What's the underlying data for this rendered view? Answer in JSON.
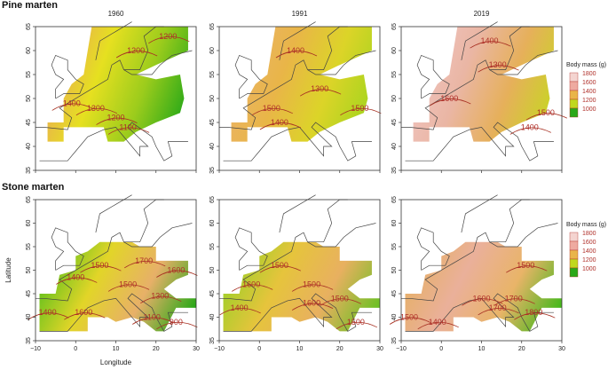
{
  "rows": [
    {
      "title": "Pine marten",
      "legend_title": "Body mass (g)",
      "panels": [
        {
          "year": "1960",
          "contours": [
            "1200",
            "1200",
            "1400",
            "1300",
            "1200",
            "1100"
          ],
          "colors": [
            "#e9a65a",
            "#e6e020",
            "#9ccc1c",
            "#27a818"
          ]
        },
        {
          "year": "1991",
          "contours": [
            "1400",
            "1300",
            "1500",
            "1500",
            "1400"
          ],
          "colors": [
            "#eab46a",
            "#e9b548",
            "#dcd428",
            "#a6d51e"
          ]
        },
        {
          "year": "2019",
          "contours": [
            "1400",
            "1300",
            "1600",
            "1500",
            "1400"
          ],
          "colors": [
            "#f0c4c0",
            "#eab6a4",
            "#e6b05a",
            "#c8d524"
          ]
        }
      ]
    },
    {
      "title": "Stone marten",
      "legend_title": "Body mass (g)",
      "panels": [
        {
          "year": "",
          "contours": [
            "1400",
            "1500",
            "1700",
            "1600",
            "1500",
            "1300",
            "1100",
            "900",
            "1400",
            "1600"
          ],
          "colors": [
            "#5cc01c",
            "#e2d528",
            "#e7b068",
            "#2aa818"
          ]
        },
        {
          "year": "",
          "contours": [
            "1600",
            "1500",
            "1500",
            "1600",
            "1500",
            "1400",
            "1500"
          ],
          "colors": [
            "#9cd028",
            "#e6c43c",
            "#e8b060",
            "#6cc024"
          ]
        },
        {
          "year": "",
          "contours": [
            "1500",
            "1600",
            "1700",
            "1700",
            "1800",
            "1400",
            "1500"
          ],
          "colors": [
            "#e6b066",
            "#eab09a",
            "#e9b468",
            "#46b81c"
          ]
        }
      ]
    }
  ],
  "axes": {
    "yticks": [
      "35",
      "40",
      "45",
      "50",
      "55",
      "60",
      "65"
    ],
    "xticks": [
      "−10",
      "0",
      "10",
      "20",
      "30"
    ],
    "xlabel": "Longitude",
    "ylabel": "Latitude"
  },
  "legend": {
    "values": [
      "1800",
      "1600",
      "1400",
      "1200",
      "1000"
    ],
    "colors": [
      "#f4d4d0",
      "#eeaaa0",
      "#e9b54a",
      "#c0d81e",
      "#2aa818"
    ]
  }
}
